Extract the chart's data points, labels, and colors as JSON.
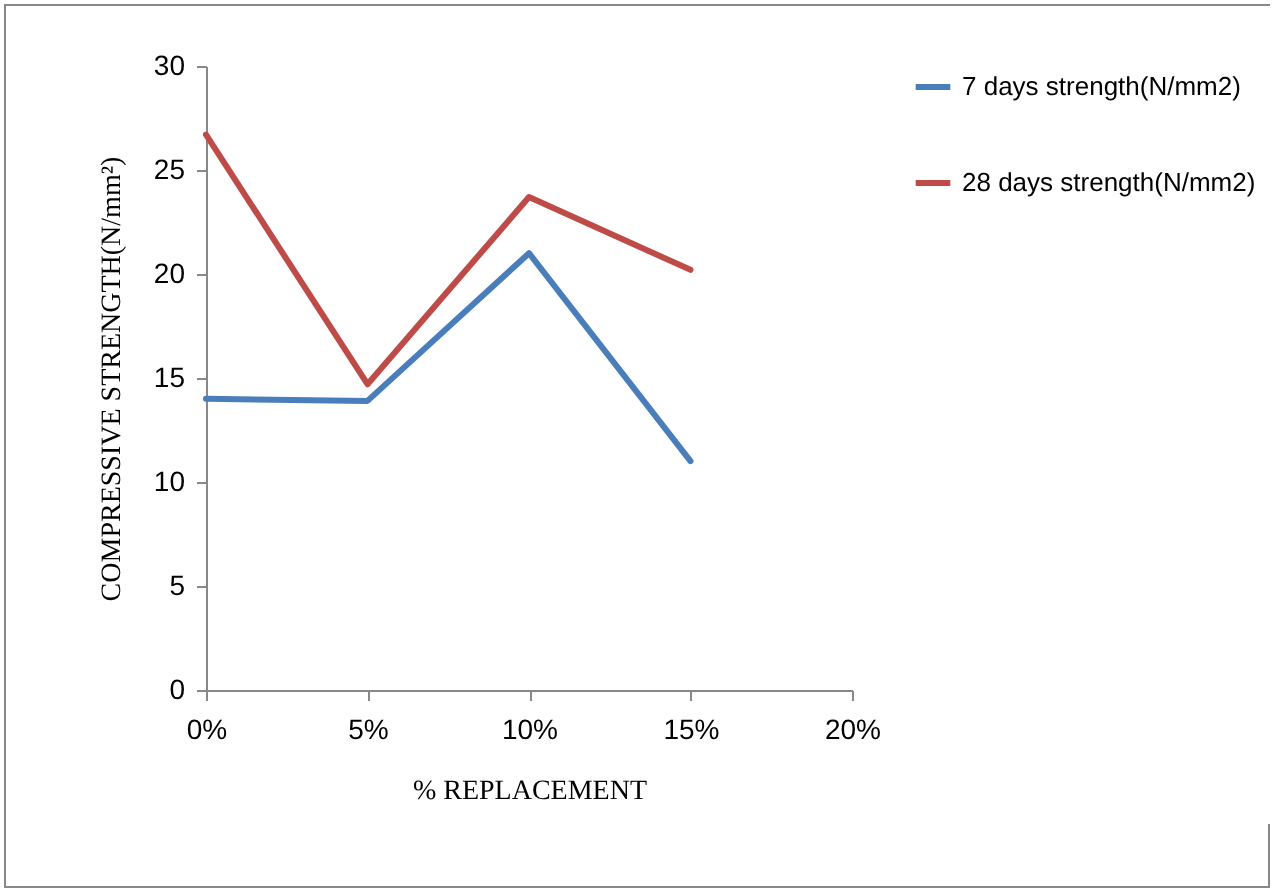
{
  "chart_data": {
    "type": "line",
    "xlabel": "% REPLACEMENT",
    "ylabel": "COMPRESSIVE STRENGTH(N/mm²)",
    "categories": [
      "0%",
      "5%",
      "10%",
      "15%",
      "20%"
    ],
    "series": [
      {
        "name": "7 days strength(N/mm2)",
        "color": "#4a7ebb",
        "values": [
          14,
          13.9,
          21,
          11,
          null
        ]
      },
      {
        "name": "28 days strength(N/mm2)",
        "color": "#be4b48",
        "values": [
          26.7,
          14.7,
          23.7,
          20.2,
          null
        ]
      }
    ],
    "ylim": [
      0,
      30
    ],
    "yticks": [
      0,
      5,
      10,
      15,
      20,
      25,
      30
    ],
    "grid": false,
    "legend": "right",
    "marker": "none",
    "line_style": "solid"
  }
}
